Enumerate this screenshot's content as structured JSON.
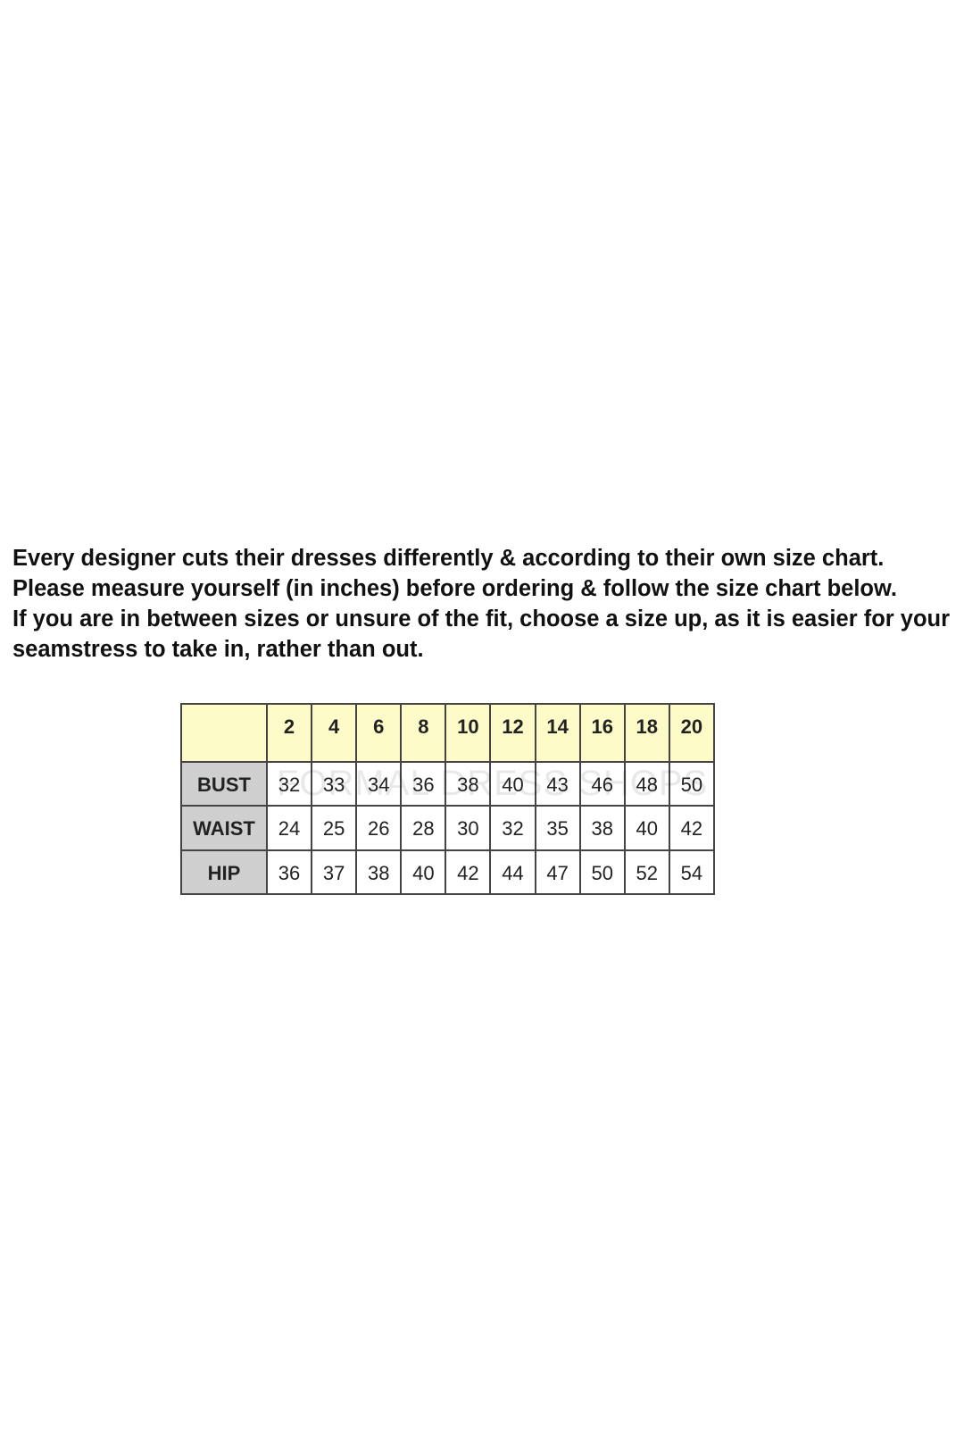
{
  "intro": {
    "paragraph1": "Every designer cuts their dresses differently & according to their own size chart. Please measure yourself (in inches) before ordering & follow the size chart below.",
    "paragraph2": "If you are in between sizes or unsure of the fit, choose a size up, as it is easier for your seamstress to take in, rather than out."
  },
  "size_chart": {
    "sizes": [
      "2",
      "4",
      "6",
      "8",
      "10",
      "12",
      "14",
      "16",
      "18",
      "20"
    ],
    "rows": [
      {
        "label": "BUST",
        "values": [
          "32",
          "33",
          "34",
          "36",
          "38",
          "40",
          "43",
          "46",
          "48",
          "50"
        ]
      },
      {
        "label": "WAIST",
        "values": [
          "24",
          "25",
          "26",
          "28",
          "30",
          "32",
          "35",
          "38",
          "40",
          "42"
        ]
      },
      {
        "label": "HIP",
        "values": [
          "36",
          "37",
          "38",
          "40",
          "42",
          "44",
          "47",
          "50",
          "52",
          "54"
        ]
      }
    ],
    "header_color": "#fdfcc8",
    "label_color": "#cfcfcf",
    "watermark": "FORMAL DRESS SHOPS"
  }
}
